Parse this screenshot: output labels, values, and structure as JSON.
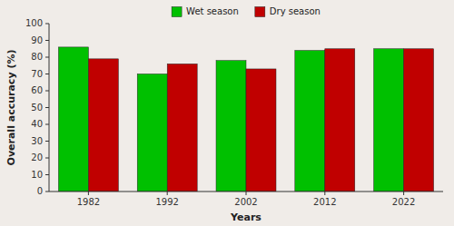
{
  "chart_data": {
    "type": "bar",
    "categories": [
      "1982",
      "1992",
      "2002",
      "2012",
      "2022"
    ],
    "series": [
      {
        "name": "Wet season",
        "color": "#00C000",
        "values": [
          86,
          70,
          78,
          84,
          85
        ]
      },
      {
        "name": "Dry season",
        "color": "#C00000",
        "values": [
          79,
          76,
          73,
          85,
          85
        ]
      }
    ],
    "xlabel": "Years",
    "ylabel": "Overall accuracy (%)",
    "ylim": [
      0,
      100
    ],
    "yticks": [
      0,
      10,
      20,
      30,
      40,
      50,
      60,
      70,
      80,
      90,
      100
    ],
    "grid": false,
    "legend": "top"
  }
}
